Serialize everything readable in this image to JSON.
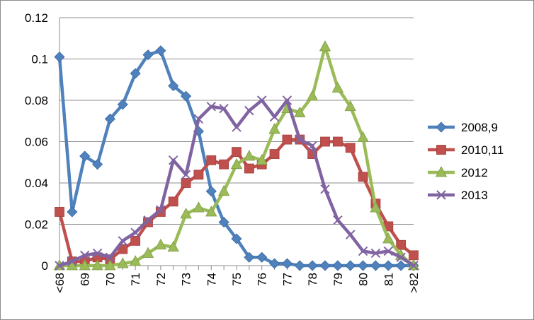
{
  "chart_data": {
    "type": "line",
    "title": "",
    "xlabel": "",
    "ylabel": "",
    "categories": [
      "<68",
      "68.5",
      "69",
      "69.5",
      "70",
      "70.5",
      "71",
      "71.5",
      "72",
      "72.5",
      "73",
      "73.5",
      "74",
      "74.5",
      "75",
      "75.5",
      "76",
      "76.5",
      "77",
      "77.5",
      "78",
      "78.5",
      "79",
      "79.5",
      "80",
      "80.5",
      "81",
      "81.5",
      ">82"
    ],
    "x_tick_labels": [
      "<68",
      "",
      "69",
      "",
      "70",
      "",
      "71",
      "",
      "72",
      "",
      "73",
      "",
      "74",
      "",
      "75",
      "",
      "76",
      "",
      "77",
      "",
      "78",
      "",
      "79",
      "",
      "80",
      "",
      "81",
      "",
      ">82"
    ],
    "ylim": [
      0,
      0.12
    ],
    "y_ticks": [
      "0",
      "0.02",
      "0.04",
      "0.06",
      "0.08",
      "0.1",
      "0.12"
    ],
    "grid": true,
    "legend_position": "right",
    "series": [
      {
        "name": "2008,9",
        "color": "#4f81bd",
        "marker": "diamond",
        "values": [
          0.101,
          0.026,
          0.053,
          0.049,
          0.071,
          0.078,
          0.093,
          0.102,
          0.104,
          0.087,
          0.082,
          0.065,
          0.036,
          0.021,
          0.013,
          0.004,
          0.004,
          0.001,
          0.001,
          0.0,
          0.0,
          0.0,
          0.0,
          0.0,
          0.0,
          0.0,
          0.0,
          0.0,
          0.0
        ]
      },
      {
        "name": "2010,11",
        "color": "#c0504d",
        "marker": "square",
        "values": [
          0.026,
          0.002,
          0.002,
          0.004,
          0.003,
          0.008,
          0.012,
          0.021,
          0.026,
          0.031,
          0.04,
          0.044,
          0.051,
          0.049,
          0.055,
          0.047,
          0.049,
          0.054,
          0.061,
          0.061,
          0.054,
          0.06,
          0.06,
          0.057,
          0.043,
          0.03,
          0.019,
          0.01,
          0.005
        ]
      },
      {
        "name": "2012",
        "color": "#9bbb59",
        "marker": "triangle",
        "values": [
          0.0,
          0.0,
          0.0,
          0.0,
          0.0,
          0.001,
          0.002,
          0.006,
          0.01,
          0.009,
          0.025,
          0.028,
          0.026,
          0.036,
          0.049,
          0.053,
          0.051,
          0.066,
          0.076,
          0.074,
          0.082,
          0.106,
          0.086,
          0.077,
          0.062,
          0.028,
          0.013,
          0.005,
          0.0
        ]
      },
      {
        "name": "2013",
        "color": "#8064a2",
        "marker": "x",
        "values": [
          0.0,
          0.002,
          0.005,
          0.006,
          0.004,
          0.012,
          0.016,
          0.022,
          0.027,
          0.051,
          0.044,
          0.071,
          0.077,
          0.076,
          0.067,
          0.075,
          0.08,
          0.072,
          0.08,
          0.061,
          0.058,
          0.037,
          0.022,
          0.015,
          0.007,
          0.006,
          0.007,
          0.004,
          0.0
        ]
      }
    ]
  }
}
